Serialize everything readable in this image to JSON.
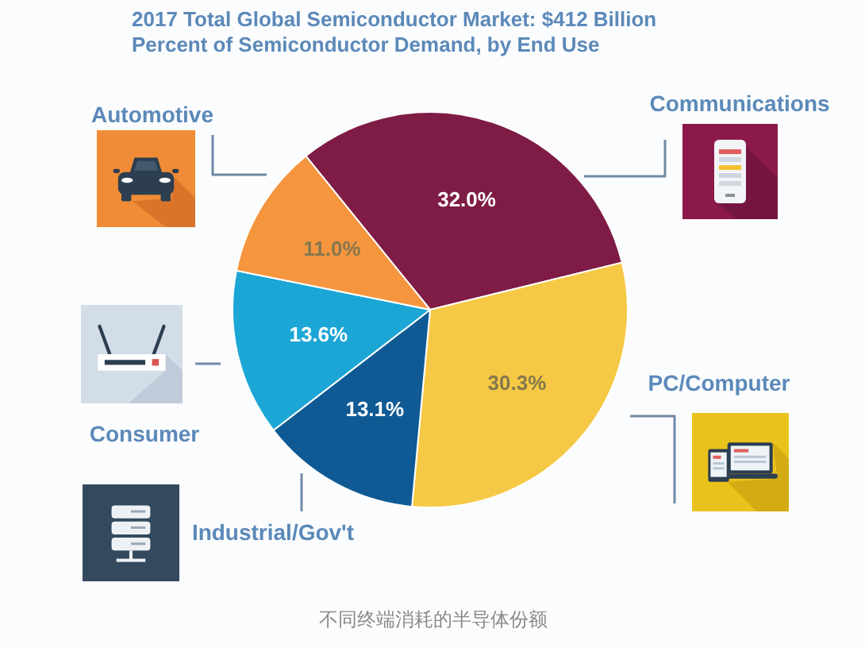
{
  "chart_data": {
    "type": "pie",
    "title": "2017 Total Global Semiconductor Market: $412 Billion",
    "subtitle": "Percent of Semiconductor Demand, by End Use",
    "categories": [
      "Communications",
      "PC/Computer",
      "Industrial/Gov't",
      "Consumer",
      "Automotive"
    ],
    "values": [
      32.0,
      30.3,
      13.1,
      13.6,
      11.0
    ],
    "colors": [
      "#7e1c45",
      "#f5c945",
      "#0f5a94",
      "#1ba6d6",
      "#f5963f"
    ],
    "value_labels": [
      "32.0%",
      "30.3%",
      "13.1%",
      "13.6%",
      "11.0%"
    ],
    "annotations": [
      "不同终端消耗的半导体份额"
    ]
  }
}
